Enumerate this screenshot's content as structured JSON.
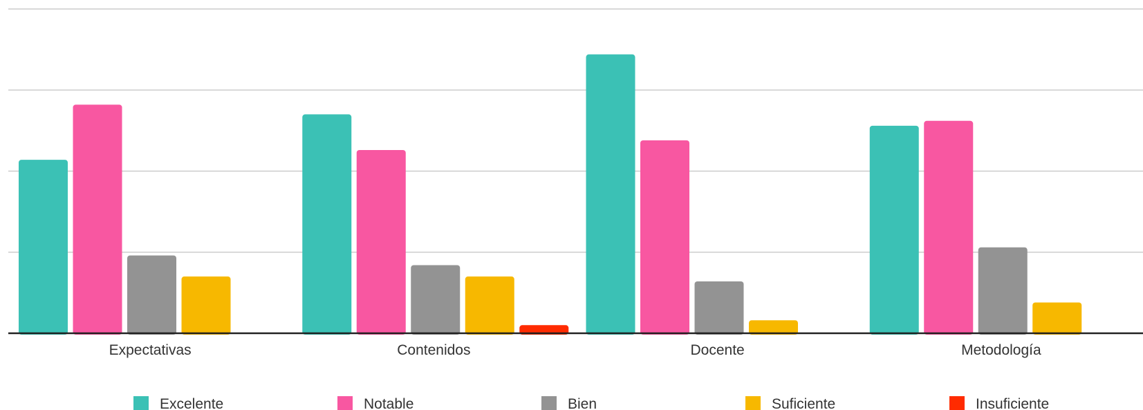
{
  "chart_data": {
    "type": "bar",
    "title": "",
    "xlabel": "",
    "ylabel": "",
    "categories": [
      "Expectativas",
      "Contenidos",
      "Docente",
      "Metodología"
    ],
    "ylim": [
      0,
      20
    ],
    "grid": true,
    "legend_position": "bottom",
    "series": [
      {
        "name": "Excelente",
        "color": "#3BC1B5",
        "values": [
          10.7,
          13.5,
          17.2,
          12.8
        ]
      },
      {
        "name": "Notable",
        "color": "#F857A1",
        "values": [
          14.1,
          11.3,
          11.9,
          13.1
        ]
      },
      {
        "name": "Bien",
        "color": "#939393",
        "values": [
          4.8,
          4.2,
          3.2,
          5.3
        ]
      },
      {
        "name": "Suficiente",
        "color": "#F7B800",
        "values": [
          3.5,
          3.5,
          0.8,
          1.9
        ]
      },
      {
        "name": "Insuficiente",
        "color": "#FF2B00",
        "values": [
          0,
          0.5,
          0,
          0
        ]
      }
    ]
  }
}
